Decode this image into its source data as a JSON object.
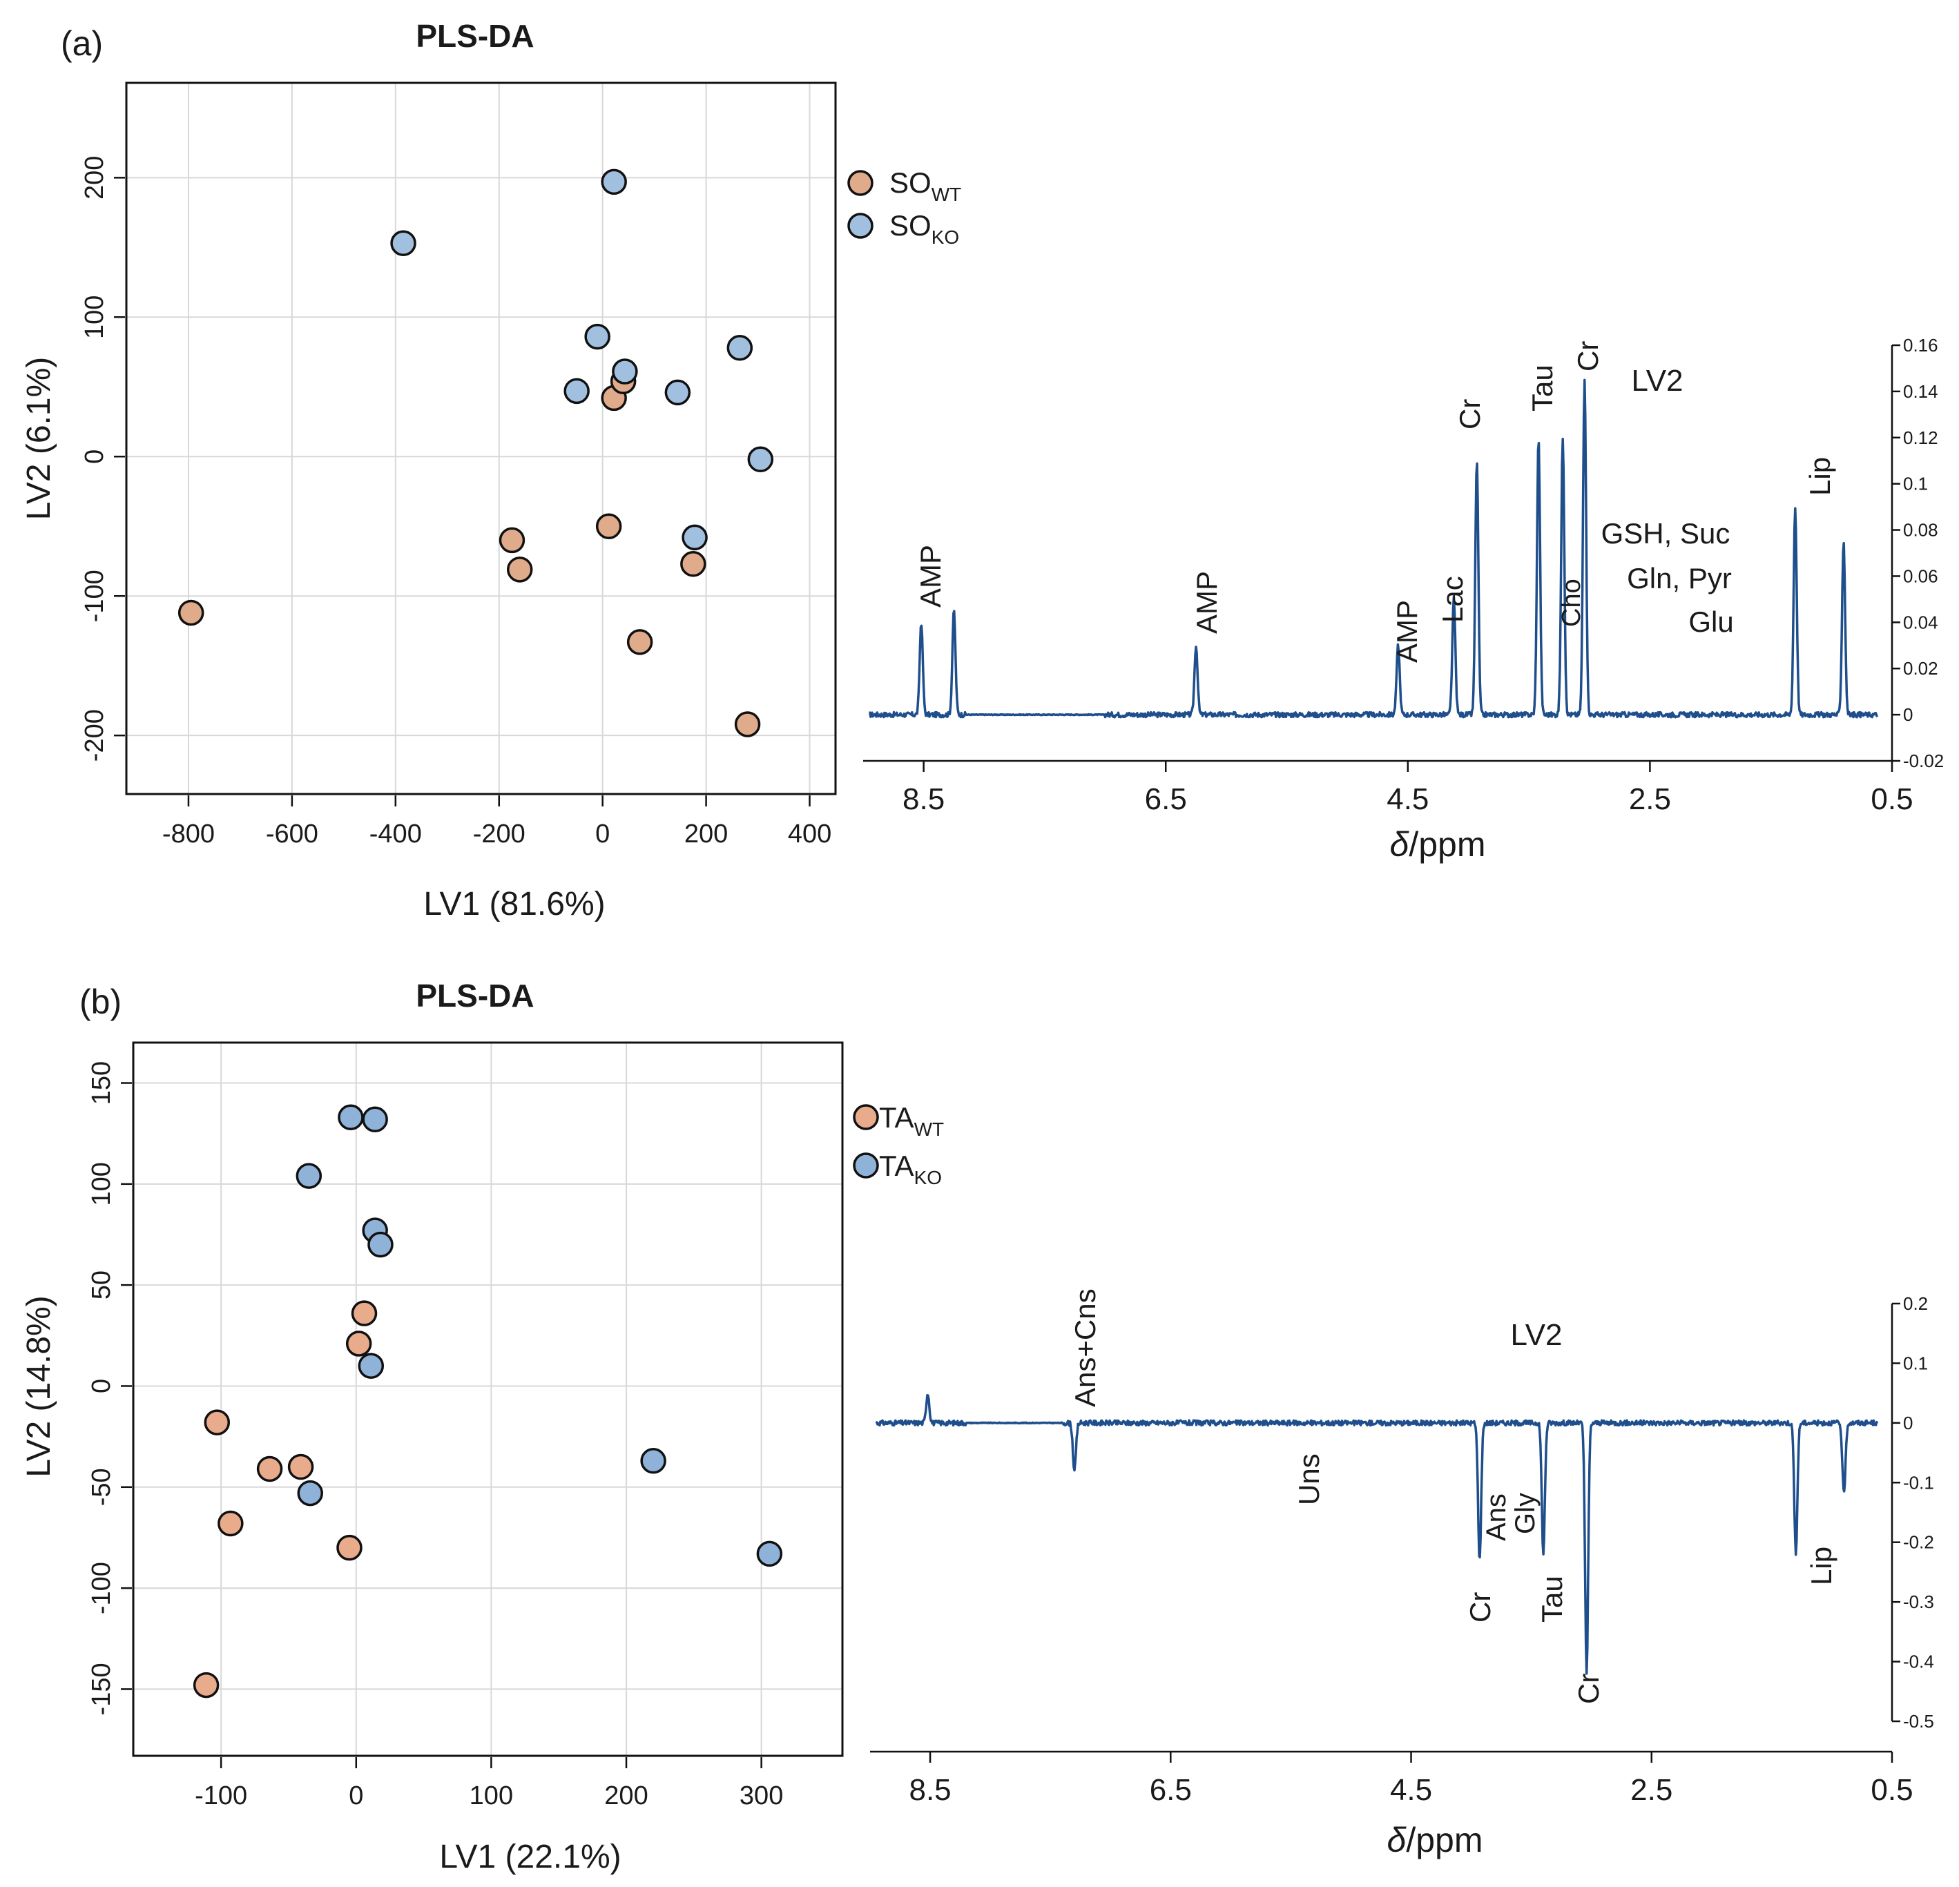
{
  "panel_a": {
    "label": "(a)",
    "title": "PLS-DA",
    "xlabel": "LV1 (81.6%)",
    "ylabel": "LV2 (6.1%)",
    "legend": [
      {
        "main": "SO",
        "sub": "WT",
        "color": "#e0ab8b"
      },
      {
        "main": "SO",
        "sub": "KO",
        "color": "#a1c0e0"
      }
    ]
  },
  "panel_b": {
    "label": "(b)",
    "title": "PLS-DA",
    "xlabel": "LV1 (22.1%)",
    "ylabel": "LV2 (14.8%)",
    "legend": [
      {
        "main": "TA",
        "sub": "WT",
        "color": "#e8ab8c"
      },
      {
        "main": "TA",
        "sub": "KO",
        "color": "#8fb2d9"
      }
    ]
  },
  "spectrum_a": {
    "title": "LV2",
    "xlabel_italic": "δ",
    "xlabel_rest": "/ppm",
    "xticks": [
      "8.5",
      "6.5",
      "4.5",
      "2.5",
      "0.5"
    ],
    "yticks": [
      "-0.02",
      "0",
      "0.02",
      "0.04",
      "0.06",
      "0.08",
      "0.1",
      "0.12",
      "0.14",
      "0.16"
    ],
    "annotations": [
      "AMP",
      "AMP",
      "AMP",
      "Lac",
      "Cr",
      "Tau",
      "Cho",
      "Cr",
      "GSH, Suc",
      "Gln, Pyr",
      "Glu",
      "Lip"
    ]
  },
  "spectrum_b": {
    "title": "LV2",
    "xlabel_italic": "δ",
    "xlabel_rest": "/ppm",
    "xticks": [
      "8.5",
      "6.5",
      "4.5",
      "2.5",
      "0.5"
    ],
    "yticks": [
      "0.2",
      "0.1",
      "0",
      "-0.1",
      "-0.2",
      "-0.3",
      "-0.4",
      "-0.5"
    ],
    "annotations": [
      "Ans+Cns",
      "Uns",
      "Ans",
      "Gly",
      "Cr",
      "Tau",
      "Cr",
      "Lip"
    ]
  },
  "chart_data": [
    {
      "type": "scatter",
      "title": "PLS-DA",
      "xlabel": "LV1 (81.6%)",
      "ylabel": "LV2 (6.1%)",
      "xlim": [
        -920,
        450
      ],
      "ylim": [
        -242,
        268
      ],
      "xticks": [
        -800,
        -600,
        -400,
        -200,
        0,
        200,
        400
      ],
      "yticks": [
        -200,
        -100,
        0,
        100,
        200
      ],
      "series": [
        {
          "name": "SO_WT",
          "color": "#e0ab8b",
          "points": [
            [
              -795,
              -112
            ],
            [
              -175,
              -60
            ],
            [
              -160,
              -81
            ],
            [
              12,
              -50
            ],
            [
              22,
              42
            ],
            [
              40,
              54
            ],
            [
              175,
              -77
            ],
            [
              72,
              -133
            ],
            [
              280,
              -192
            ]
          ]
        },
        {
          "name": "SO_KO",
          "color": "#a1c0e0",
          "points": [
            [
              -385,
              153
            ],
            [
              22,
              197
            ],
            [
              -10,
              86
            ],
            [
              -50,
              47
            ],
            [
              43,
              61
            ],
            [
              145,
              46
            ],
            [
              265,
              78
            ],
            [
              305,
              -2
            ],
            [
              178,
              -58
            ]
          ]
        }
      ]
    },
    {
      "type": "scatter",
      "title": "PLS-DA",
      "xlabel": "LV1 (22.1%)",
      "ylabel": "LV2 (14.8%)",
      "xlim": [
        -165,
        360
      ],
      "ylim": [
        -183,
        170
      ],
      "xticks": [
        -100,
        0,
        100,
        200,
        300
      ],
      "yticks": [
        -150,
        -100,
        -50,
        0,
        50,
        100,
        150
      ],
      "series": [
        {
          "name": "TA_WT",
          "color": "#e8ab8c",
          "points": [
            [
              -103,
              -18
            ],
            [
              -64,
              -41
            ],
            [
              -41,
              -40
            ],
            [
              -93,
              -68
            ],
            [
              -5,
              -80
            ],
            [
              6,
              36
            ],
            [
              2,
              21
            ],
            [
              -111,
              -148
            ]
          ]
        },
        {
          "name": "TA_KO",
          "color": "#8fb2d9",
          "points": [
            [
              -4,
              133
            ],
            [
              14,
              132
            ],
            [
              -35,
              104
            ],
            [
              14,
              77
            ],
            [
              18,
              70
            ],
            [
              11,
              10
            ],
            [
              -34,
              -53
            ],
            [
              220,
              -37
            ],
            [
              306,
              -83
            ]
          ]
        }
      ]
    },
    {
      "type": "line",
      "title": "LV2",
      "xlabel": "δ/ppm",
      "xlim": [
        9.0,
        0.5
      ],
      "ylim": [
        -0.02,
        0.16
      ],
      "peaks": [
        {
          "ppm": 8.52,
          "value": 0.04
        },
        {
          "ppm": 8.25,
          "value": 0.045
        },
        {
          "ppm": 6.25,
          "value": 0.03
        },
        {
          "ppm": 4.58,
          "value": 0.03
        },
        {
          "ppm": 4.12,
          "value": 0.05
        },
        {
          "ppm": 3.93,
          "value": 0.11
        },
        {
          "ppm": 3.42,
          "value": 0.12
        },
        {
          "ppm": 3.22,
          "value": 0.12
        },
        {
          "ppm": 3.04,
          "value": 0.145
        },
        {
          "ppm": 1.3,
          "value": 0.09
        },
        {
          "ppm": 0.9,
          "value": 0.075
        }
      ],
      "annotations": [
        "AMP",
        "AMP",
        "AMP",
        "Lac",
        "Cr",
        "Tau",
        "Cho",
        "Cr",
        "GSH, Suc",
        "Gln, Pyr",
        "Glu",
        "Lip"
      ]
    },
    {
      "type": "line",
      "title": "LV2",
      "xlabel": "δ/ppm",
      "xlim": [
        9.0,
        0.5
      ],
      "ylim": [
        -0.5,
        0.2
      ],
      "peaks": [
        {
          "ppm": 8.52,
          "value": 0.05
        },
        {
          "ppm": 7.3,
          "value": -0.08
        },
        {
          "ppm": 3.93,
          "value": -0.23
        },
        {
          "ppm": 3.4,
          "value": -0.22
        },
        {
          "ppm": 3.04,
          "value": -0.42
        },
        {
          "ppm": 1.3,
          "value": -0.22
        },
        {
          "ppm": 0.9,
          "value": -0.12
        }
      ],
      "annotations": [
        "Ans+Cns",
        "Uns",
        "Ans",
        "Gly",
        "Cr",
        "Tau",
        "Cr",
        "Lip"
      ]
    }
  ]
}
